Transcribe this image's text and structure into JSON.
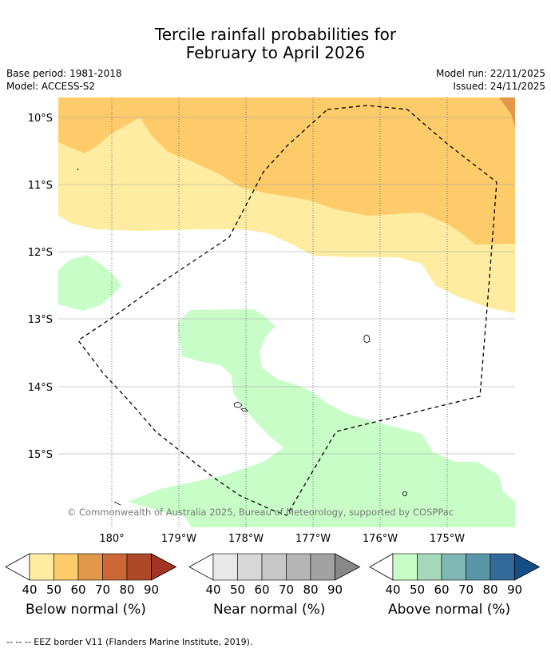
{
  "title": {
    "line1": "Tercile rainfall probabilities for",
    "line2": "February to April 2026"
  },
  "meta": {
    "base_period": "Base period: 1981-2018",
    "model": "Model: ACCESS-S2",
    "model_run": "Model run: 22/11/2025",
    "issued": "Issued: 24/11/2025"
  },
  "map": {
    "lat_labels": [
      "10°S",
      "11°S",
      "12°S",
      "13°S",
      "14°S",
      "15°S"
    ],
    "lon_labels": [
      "180°",
      "179°W",
      "178°W",
      "177°W",
      "176°W",
      "175°W"
    ],
    "copyright": "© Commonwealth of Australia 2025, Bureau of Meteorology, supported by COSPPac"
  },
  "legends": [
    {
      "name": "Below normal (%)",
      "ticks": [
        "40",
        "50",
        "60",
        "70",
        "80",
        "90"
      ],
      "colors": [
        "#feeda0",
        "#fdcb69",
        "#e1984a",
        "#cd6735",
        "#ad4828",
        "#9f3522"
      ]
    },
    {
      "name": "Near normal (%)",
      "ticks": [
        "40",
        "50",
        "60",
        "70",
        "80",
        "90"
      ],
      "colors": [
        "#e8e8e8",
        "#d8d8d8",
        "#c8c8c8",
        "#b5b5b5",
        "#a2a2a2",
        "#888888"
      ]
    },
    {
      "name": "Above normal (%)",
      "ticks": [
        "40",
        "50",
        "60",
        "70",
        "80",
        "90"
      ],
      "colors": [
        "#c8fdc8",
        "#a6d9bb",
        "#7fb7b4",
        "#5b96a6",
        "#336a9b",
        "#154d85"
      ]
    }
  ],
  "footnote": "-- -- -- EEZ border V11 (Flanders Marine Institute, 2019)."
}
